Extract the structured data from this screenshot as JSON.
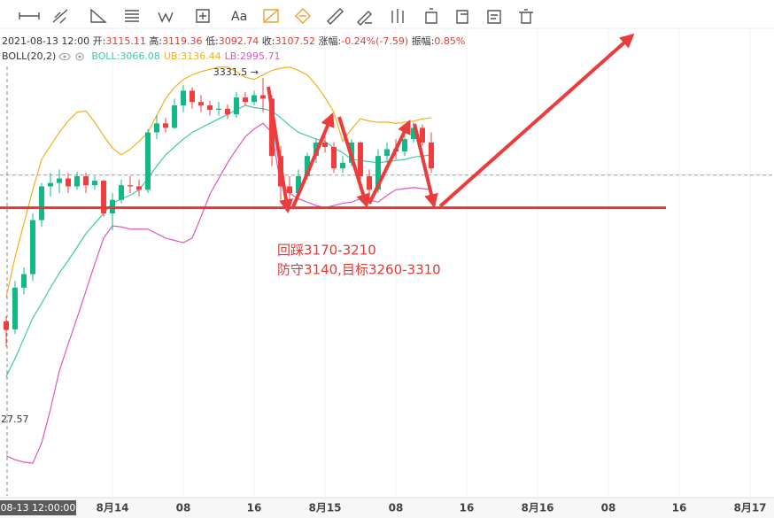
{
  "chart_data": {
    "type": "candlestick",
    "toolbar_text": "Aa",
    "info_bar": {
      "time": "2021-08-13 12:00",
      "color": "#e53935",
      "items": [
        {
          "label": "开:",
          "value": "3115.11"
        },
        {
          "label": "高:",
          "value": "3119.36"
        },
        {
          "label": "低:",
          "value": "3092.74"
        },
        {
          "label": "收:",
          "value": "3107.52"
        },
        {
          "label": "涨幅:",
          "value": "-0.24%(-7.59)"
        },
        {
          "label": "振幅:",
          "value": "0.85%"
        }
      ]
    },
    "indicator": "BOLL(20,2)",
    "categories": [
      null,
      null,
      null,
      null,
      null,
      null,
      null,
      null,
      null,
      null,
      null,
      null,
      null,
      null,
      null,
      null,
      null,
      null,
      null,
      null,
      null,
      null,
      null,
      null,
      null,
      null,
      null,
      null,
      null,
      null,
      null,
      null,
      null,
      null,
      null,
      null,
      null,
      null,
      null,
      null,
      null,
      null,
      null,
      null,
      null,
      null,
      null,
      null,
      null
    ],
    "ohlc": [
      [
        3115.11,
        3119.36,
        3092.74,
        3107.52
      ],
      [
        3108,
        3151,
        3104,
        3145
      ],
      [
        3145,
        3163,
        3139,
        3157
      ],
      [
        3157,
        3211,
        3151,
        3205
      ],
      [
        3205,
        3238,
        3199,
        3235
      ],
      [
        3235,
        3247,
        3226,
        3238
      ],
      [
        3238,
        3250,
        3229,
        3242
      ],
      [
        3242,
        3247,
        3229,
        3235
      ],
      [
        3235,
        3248,
        3232,
        3244
      ],
      [
        3244,
        3247,
        3229,
        3236
      ],
      [
        3236,
        3244,
        3232,
        3240
      ],
      [
        3240,
        3241,
        3208,
        3211
      ],
      [
        3211,
        3229,
        3196,
        3223
      ],
      [
        3223,
        3241,
        3220,
        3236
      ],
      [
        3236,
        3244,
        3229,
        3235
      ],
      [
        3235,
        3241,
        3226,
        3232
      ],
      [
        3232,
        3286,
        3229,
        3283
      ],
      [
        3283,
        3298,
        3277,
        3291
      ],
      [
        3291,
        3296,
        3283,
        3287
      ],
      [
        3287,
        3313,
        3286,
        3307
      ],
      [
        3307,
        3325,
        3301,
        3320
      ],
      [
        3320,
        3323,
        3304,
        3310
      ],
      [
        3310,
        3316,
        3301,
        3307
      ],
      [
        3307,
        3311,
        3298,
        3303
      ],
      [
        3303,
        3310,
        3298,
        3304
      ],
      [
        3304,
        3308,
        3295,
        3299
      ],
      [
        3299,
        3319,
        3296,
        3314
      ],
      [
        3314,
        3319,
        3307,
        3310
      ],
      [
        3310,
        3320,
        3307,
        3316
      ],
      [
        3316,
        3331.5,
        3301,
        3313
      ],
      [
        3313,
        3316,
        3253,
        3262
      ],
      [
        3262,
        3271,
        3223,
        3235
      ],
      [
        3235,
        3244,
        3220,
        3229
      ],
      [
        3229,
        3250,
        3223,
        3244
      ],
      [
        3244,
        3265,
        3241,
        3262
      ],
      [
        3262,
        3277,
        3256,
        3274
      ],
      [
        3274,
        3280,
        3265,
        3270
      ],
      [
        3270,
        3274,
        3247,
        3251
      ],
      [
        3251,
        3262,
        3247,
        3256
      ],
      [
        3256,
        3277,
        3253,
        3274
      ],
      [
        3274,
        3275,
        3238,
        3244
      ],
      [
        3244,
        3250,
        3223,
        3232
      ],
      [
        3232,
        3268,
        3229,
        3262
      ],
      [
        3262,
        3274,
        3256,
        3268
      ],
      [
        3268,
        3277,
        3259,
        3266
      ],
      [
        3266,
        3280,
        3262,
        3277
      ],
      [
        3277,
        3292,
        3274,
        3287
      ],
      [
        3287,
        3290,
        3271,
        3274
      ],
      [
        3274,
        3283,
        3247,
        3251
      ]
    ],
    "up_color": "#12b886",
    "down_color": "#f03e3e",
    "series": [
      {
        "name": "BOLL:3066.08",
        "color": "#3fc9a8",
        "values": [
          3066.08,
          3082,
          3100,
          3118,
          3131,
          3145,
          3158,
          3169,
          3181,
          3193,
          3202,
          3211,
          3220,
          3224,
          3227,
          3232,
          3242,
          3253,
          3263,
          3270,
          3277,
          3283,
          3287,
          3291,
          3295,
          3299,
          3303,
          3307,
          3305,
          3304,
          3302,
          3296,
          3289,
          3283,
          3280,
          3277,
          3275,
          3269,
          3265,
          3259,
          3258,
          3257,
          3256,
          3257,
          3258,
          3259,
          3261,
          3262,
          3263
        ]
      },
      {
        "name": "UB:3136.44",
        "color": "#f2b01e",
        "values": [
          3136.44,
          3172,
          3202,
          3232,
          3259,
          3271,
          3283,
          3293,
          3301,
          3302,
          3292,
          3280,
          3269,
          3263,
          3268,
          3275,
          3283,
          3298,
          3313,
          3323,
          3330,
          3334,
          3337,
          3339,
          3341,
          3341,
          3337,
          3332,
          3330,
          3334,
          3338,
          3340,
          3341,
          3338,
          3334,
          3325,
          3314,
          3301,
          3275,
          3286,
          3295,
          3293,
          3292,
          3292,
          3291,
          3292,
          3293,
          3295,
          3296
        ]
      },
      {
        "name": "LB:2995.71",
        "color": "#e056c1",
        "values": [
          2995.71,
          2992,
          2990,
          2989,
          3007,
          3037,
          3071,
          3095,
          3118,
          3142,
          3166,
          3189,
          3200,
          3199,
          3197,
          3197,
          3197,
          3193,
          3189,
          3187,
          3185,
          3189,
          3208,
          3228,
          3242,
          3256,
          3268,
          3279,
          3286,
          3291,
          3283,
          3236,
          3229,
          3224,
          3221,
          3218,
          3216,
          3218,
          3220,
          3221,
          3224,
          3223,
          3221,
          3227,
          3232,
          3233,
          3234,
          3233,
          3232
        ]
      }
    ],
    "ylim": [
      2960,
      3377
    ],
    "xlim": [
      -0.7,
      86.7
    ],
    "xticks": [
      {
        "value": 12,
        "label": "8月14"
      },
      {
        "value": 20,
        "label": "08"
      },
      {
        "value": 28,
        "label": "16"
      },
      {
        "value": 36,
        "label": "8月15"
      },
      {
        "value": 44,
        "label": "08"
      },
      {
        "value": 52,
        "label": "16"
      },
      {
        "value": 60,
        "label": "8月16"
      },
      {
        "value": 68,
        "label": "08"
      },
      {
        "value": 76,
        "label": "16"
      },
      {
        "value": 84,
        "label": "8月17"
      }
    ],
    "crosshair_label": "08-13 12:00:00",
    "high_label": "3331.5 →",
    "low_label": "27.57",
    "price_line": 3245,
    "support_line": 3216,
    "support_color": "#e53935",
    "annotations": [
      "回踩3170-3210",
      "防守3140,目标3260-3310"
    ]
  }
}
